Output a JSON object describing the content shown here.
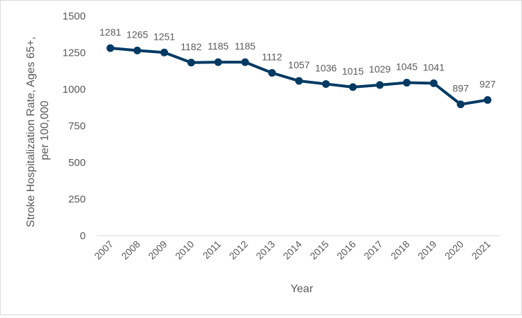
{
  "chart_data": {
    "type": "line",
    "title": "",
    "xlabel": "Year",
    "ylabel_lines": [
      "Stroke Hospitalization Rate, Ages 65+,",
      "per 100,000"
    ],
    "ylim": [
      0,
      1500
    ],
    "yticks": [
      0,
      250,
      500,
      750,
      1000,
      1250,
      1500
    ],
    "yticks_labels": [
      "0",
      "250",
      "500",
      "750",
      "1000",
      "1250",
      "1500"
    ],
    "grid": false,
    "legend": "none",
    "categories": [
      "2007",
      "2008",
      "2009",
      "2010",
      "2011",
      "2012",
      "2013",
      "2014",
      "2015",
      "2016",
      "2017",
      "2018",
      "2019",
      "2020",
      "2021"
    ],
    "series": [
      {
        "values": [
          1281,
          1265,
          1251,
          1182,
          1185,
          1185,
          1112,
          1057,
          1036,
          1015,
          1029,
          1045,
          1041,
          897,
          927
        ],
        "labels": [
          "1281",
          "1265",
          "1251",
          "1182",
          "1185",
          "1185",
          "1112",
          "1057",
          "1036",
          "1015",
          "1029",
          "1045",
          "1041",
          "897",
          "927"
        ],
        "color": "#003a63"
      }
    ],
    "axis_line_color": "#d9d9d9",
    "text_color": "#595959"
  }
}
